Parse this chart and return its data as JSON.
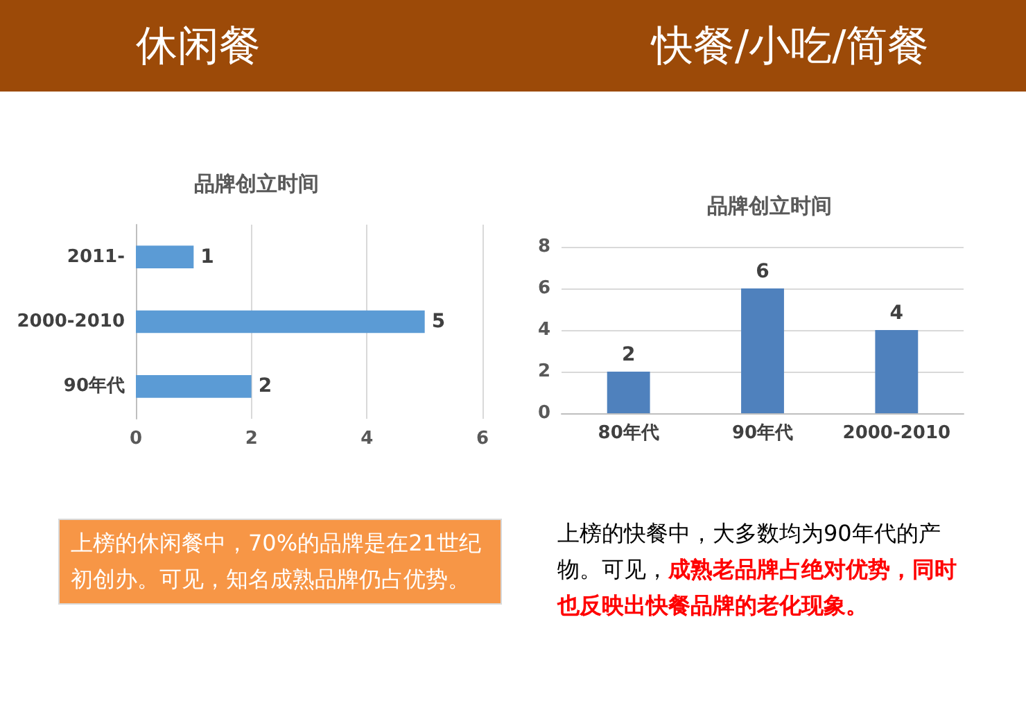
{
  "chart_data": [
    {
      "type": "bar",
      "title": "休闲餐",
      "subtitle": "品牌创立时间",
      "orientation": "horizontal",
      "categories": [
        "2011-",
        "2000-2010",
        "90年代"
      ],
      "values": [
        1,
        5,
        2
      ],
      "color": "#5b9bd5",
      "xlim": [
        0,
        6
      ],
      "xticks": [
        0,
        2,
        4,
        6
      ],
      "grid": "x",
      "data_labels": true,
      "annotations": [
        "上榜的休闲餐中，70%的品牌是在21世纪初创办。可见，知名成熟品牌仍占优势。"
      ]
    },
    {
      "type": "bar",
      "title": "快餐/小吃/简餐",
      "subtitle": "品牌创立时间",
      "categories": [
        "80年代",
        "90年代",
        "2000-2010"
      ],
      "values": [
        2,
        6,
        4
      ],
      "color": "#4f81bd",
      "ylim": [
        0,
        8
      ],
      "yticks": [
        0,
        2,
        4,
        6,
        8
      ],
      "grid": "y",
      "data_labels": true,
      "annotations": [
        "上榜的快餐中，大多数均为90年代的产物。可见，",
        "成熟老品牌占绝对优势，同时也反映出快餐品牌的老化现象。"
      ]
    }
  ]
}
